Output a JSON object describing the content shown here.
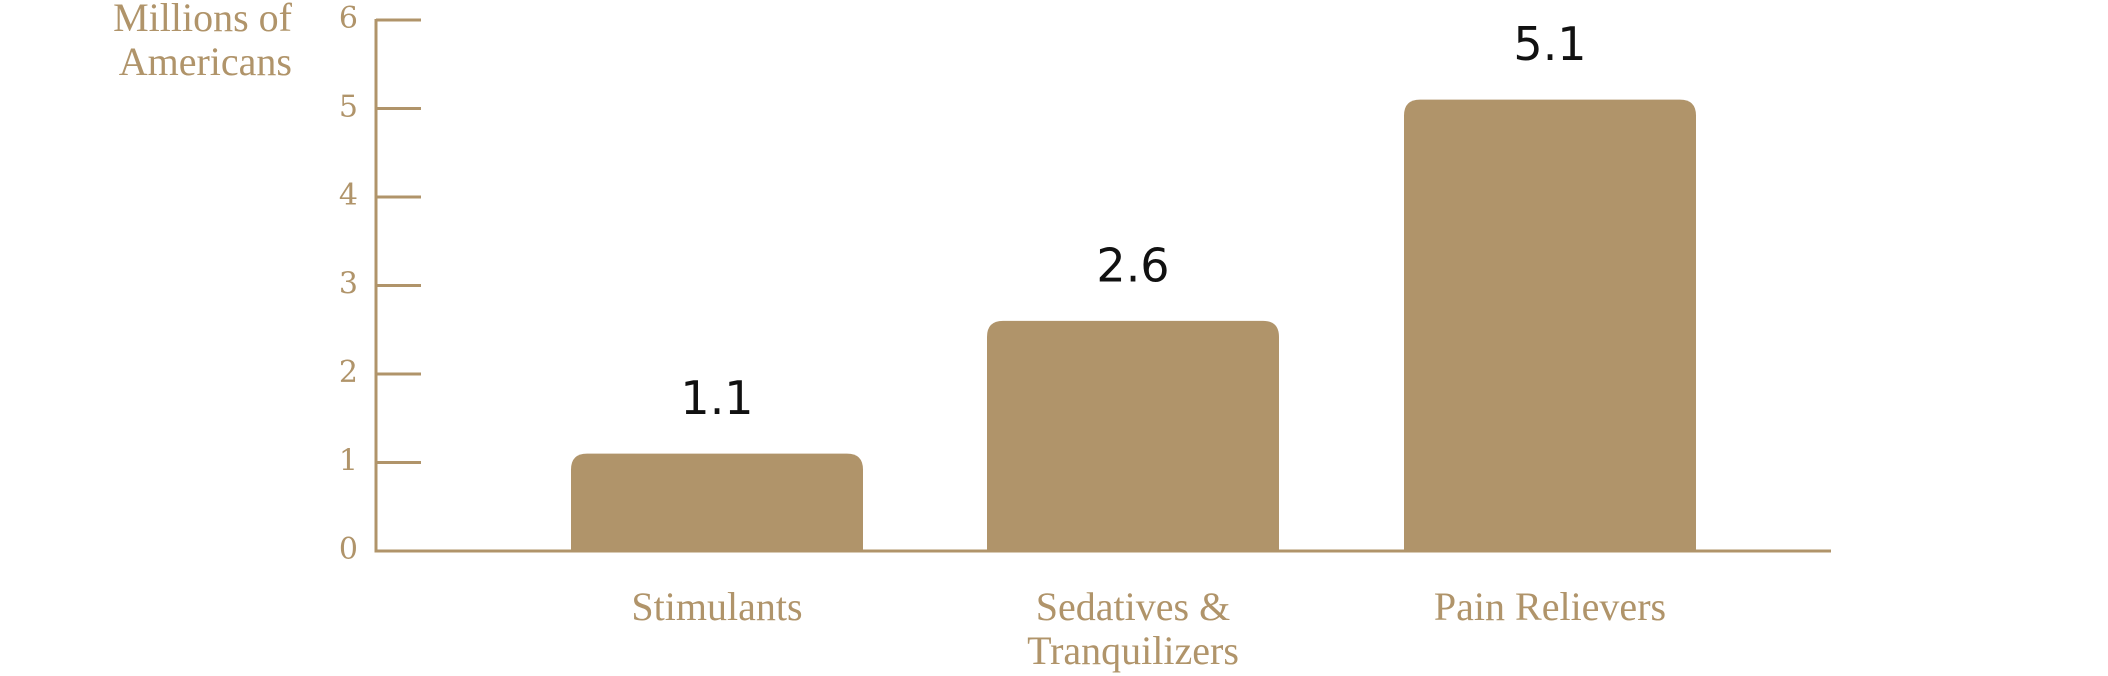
{
  "chart_data": {
    "type": "bar",
    "y_axis_label": "Millions of Americans",
    "categories": [
      "Stimulants",
      "Sedatives & Tranquilizers",
      "Pain Relievers"
    ],
    "values": [
      1.1,
      2.6,
      5.1
    ],
    "color": "#b0946a",
    "ylim": [
      0,
      6
    ],
    "yticks": [
      0,
      1,
      2,
      3,
      4,
      5,
      6
    ]
  }
}
